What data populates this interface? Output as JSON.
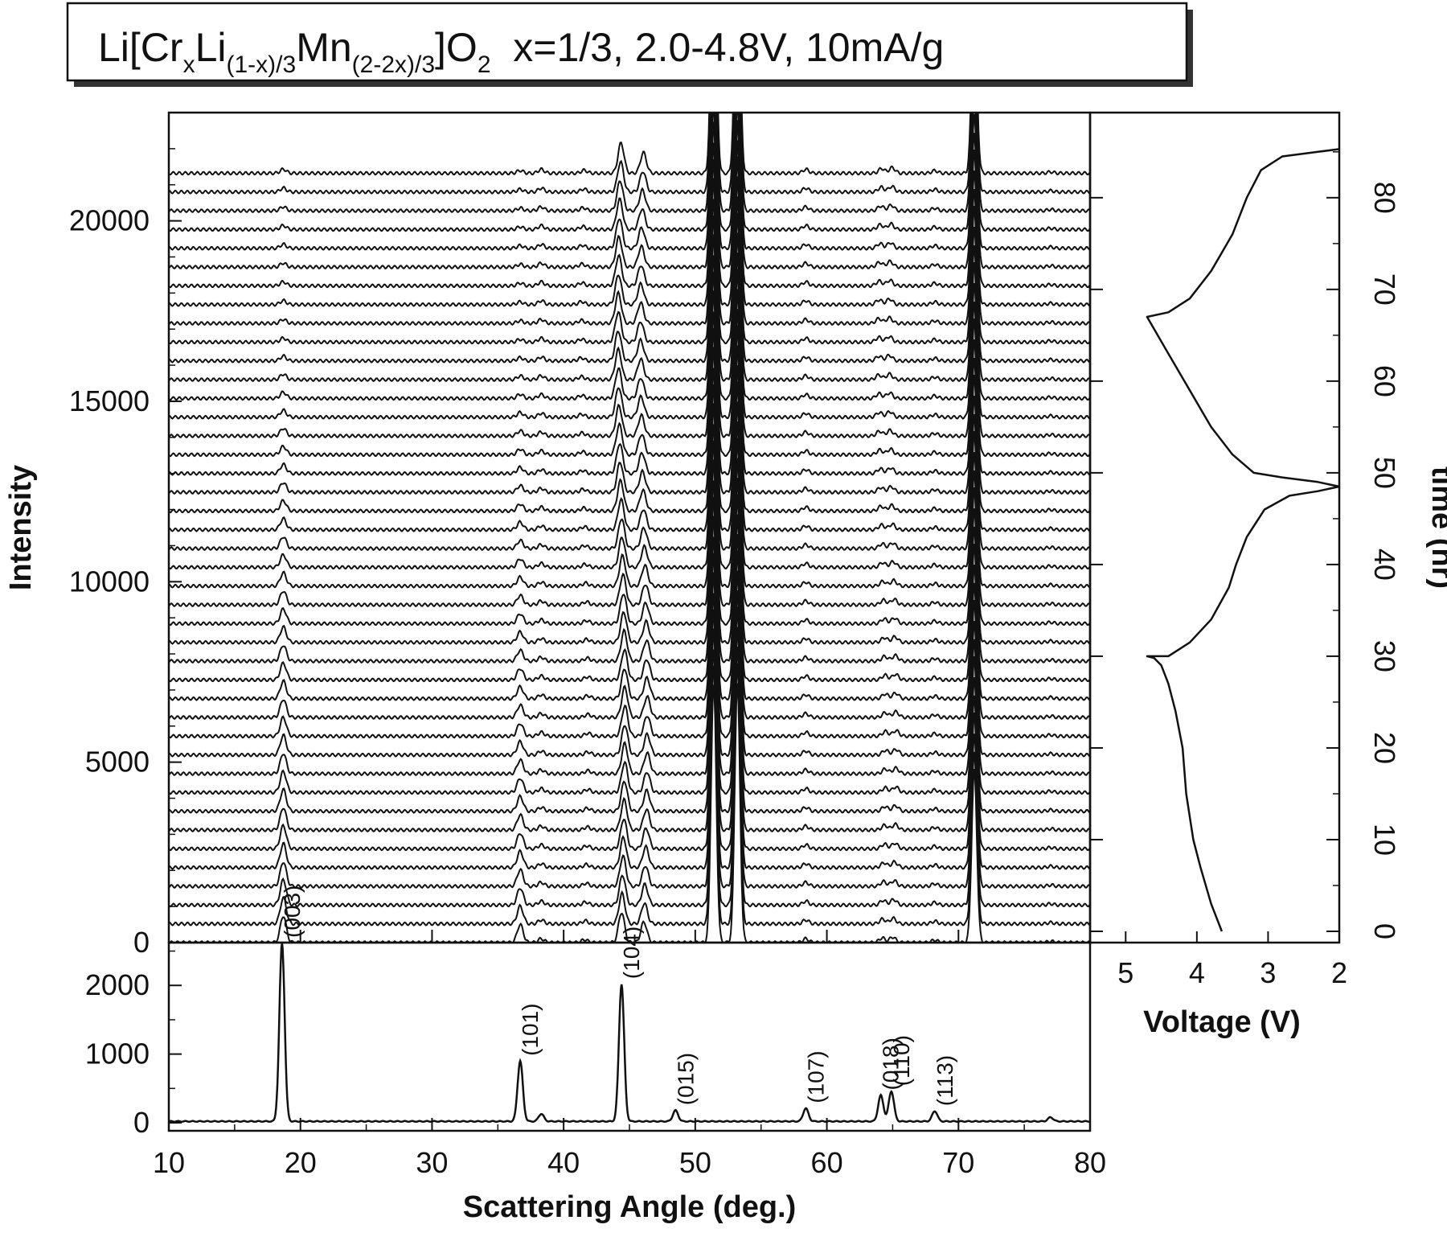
{
  "title": {
    "parts": [
      {
        "text": "Li[Cr",
        "sub": false
      },
      {
        "text": "x",
        "sub": true
      },
      {
        "text": "Li",
        "sub": false
      },
      {
        "text": "(1-x)/3",
        "sub": true
      },
      {
        "text": "Mn",
        "sub": false
      },
      {
        "text": "(2-2x)/3",
        "sub": true
      },
      {
        "text": "]O",
        "sub": false
      },
      {
        "text": "2",
        "sub": true
      },
      {
        "text": "  x=1/3, 2.0-4.8V, 10mA/g",
        "sub": false
      }
    ]
  },
  "chart_data": [
    {
      "id": "waterfall",
      "type": "line",
      "ylabel": "Intensity",
      "xlim": [
        10,
        80
      ],
      "ylim": [
        0,
        23000
      ],
      "y_ticks": [
        0,
        5000,
        10000,
        15000,
        20000
      ],
      "n_scans": 42,
      "offset_step": 520,
      "base_peaks": [
        {
          "x": 18.7,
          "h": 6200
        },
        {
          "x": 36.7,
          "h": 4200
        },
        {
          "x": 38.3,
          "h": 900
        },
        {
          "x": 41.6,
          "h": 700
        },
        {
          "x": 44.4,
          "h": 7000
        },
        {
          "x": 46.1,
          "h": 4800
        },
        {
          "x": 51.4,
          "h": 60000
        },
        {
          "x": 53.2,
          "h": 60000
        },
        {
          "x": 58.4,
          "h": 900
        },
        {
          "x": 64.2,
          "h": 1100
        },
        {
          "x": 65.0,
          "h": 1300
        },
        {
          "x": 68.2,
          "h": 600
        },
        {
          "x": 71.2,
          "h": 40000
        },
        {
          "x": 77.0,
          "h": 300
        }
      ]
    },
    {
      "id": "reference",
      "type": "line",
      "xlabel": "Scattering Angle (deg.)",
      "xlim": [
        10,
        80
      ],
      "ylim": [
        0,
        2600
      ],
      "x_ticks": [
        10,
        20,
        30,
        40,
        50,
        60,
        70,
        80
      ],
      "y_ticks": [
        0,
        1000,
        2000
      ],
      "peaks": [
        {
          "x": 18.6,
          "h": 2600,
          "label": "(003)"
        },
        {
          "x": 36.7,
          "h": 880,
          "label": "(101)"
        },
        {
          "x": 38.3,
          "h": 110,
          "label": ""
        },
        {
          "x": 44.4,
          "h": 2000,
          "label": "(104)"
        },
        {
          "x": 48.5,
          "h": 160,
          "label": "(015)"
        },
        {
          "x": 58.4,
          "h": 190,
          "label": "(107)"
        },
        {
          "x": 64.1,
          "h": 380,
          "label": "(018)"
        },
        {
          "x": 64.9,
          "h": 440,
          "label": "(110)"
        },
        {
          "x": 68.2,
          "h": 150,
          "label": "(113)"
        },
        {
          "x": 77.0,
          "h": 60,
          "label": ""
        }
      ]
    },
    {
      "id": "electrochem",
      "type": "line",
      "xlabel": "Voltage (V)",
      "ylabel": "time (hr)",
      "xlim": [
        5.5,
        2.0
      ],
      "ylim": [
        0,
        87
      ],
      "x_ticks": [
        5,
        4,
        3,
        2
      ],
      "y_ticks": [
        0,
        10,
        20,
        30,
        40,
        50,
        60,
        70,
        80
      ],
      "x": [
        3.65,
        3.8,
        3.95,
        4.05,
        4.15,
        4.2,
        4.3,
        4.4,
        4.5,
        4.6,
        4.7,
        4.4,
        4.1,
        3.8,
        3.55,
        3.45,
        3.3,
        3.05,
        2.7,
        2.3,
        2.0,
        2.3,
        2.8,
        3.2,
        3.5,
        3.8,
        4.1,
        4.4,
        4.7,
        4.4,
        4.1,
        3.8,
        3.5,
        3.3,
        3.1,
        2.8,
        2.3,
        2.0
      ],
      "y": [
        0,
        3,
        7,
        10,
        15,
        20,
        24,
        27,
        29,
        29.8,
        30,
        30,
        31.5,
        34,
        37.5,
        40,
        43,
        46,
        47.5,
        48,
        48.5,
        49,
        49.5,
        50,
        52,
        55,
        59,
        63,
        67,
        67.5,
        69,
        72,
        76,
        80,
        83,
        84.5,
        85,
        85.3
      ]
    }
  ]
}
